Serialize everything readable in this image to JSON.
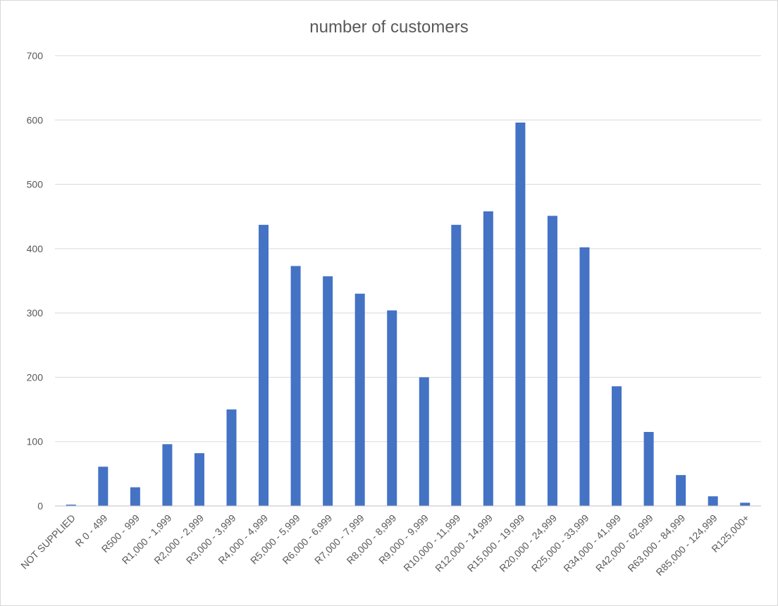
{
  "chart_data": {
    "type": "bar",
    "title": "number of customers",
    "xlabel": "",
    "ylabel": "",
    "ylim": [
      0,
      700
    ],
    "yticks": [
      0,
      100,
      200,
      300,
      400,
      500,
      600,
      700
    ],
    "grid": true,
    "legend": "none",
    "bar_color": "#4472c4",
    "categories": [
      "NOT SUPPLIED",
      "R 0 - 499",
      "R500 - 999",
      "R1,000 - 1,999",
      "R2,000 - 2,999",
      "R3,000 - 3,999",
      "R4,000 - 4,999",
      "R5,000 - 5,999",
      "R6,000 - 6,999",
      "R7,000 - 7,999",
      "R8,000 - 8,999",
      "R9,000 - 9,999",
      "R10,000 - 11,999",
      "R12,000 - 14,999",
      "R15,000 - 19,999",
      "R20,000 - 24,999",
      "R25,000 - 33,999",
      "R34,000 - 41,999",
      "R42,000 - 62,999",
      "R63,000 - 84,999",
      "R85,000 - 124,999",
      "R125,000+"
    ],
    "values": [
      2,
      61,
      29,
      96,
      82,
      150,
      437,
      373,
      357,
      330,
      304,
      200,
      437,
      458,
      596,
      451,
      402,
      186,
      115,
      48,
      15,
      5
    ]
  }
}
